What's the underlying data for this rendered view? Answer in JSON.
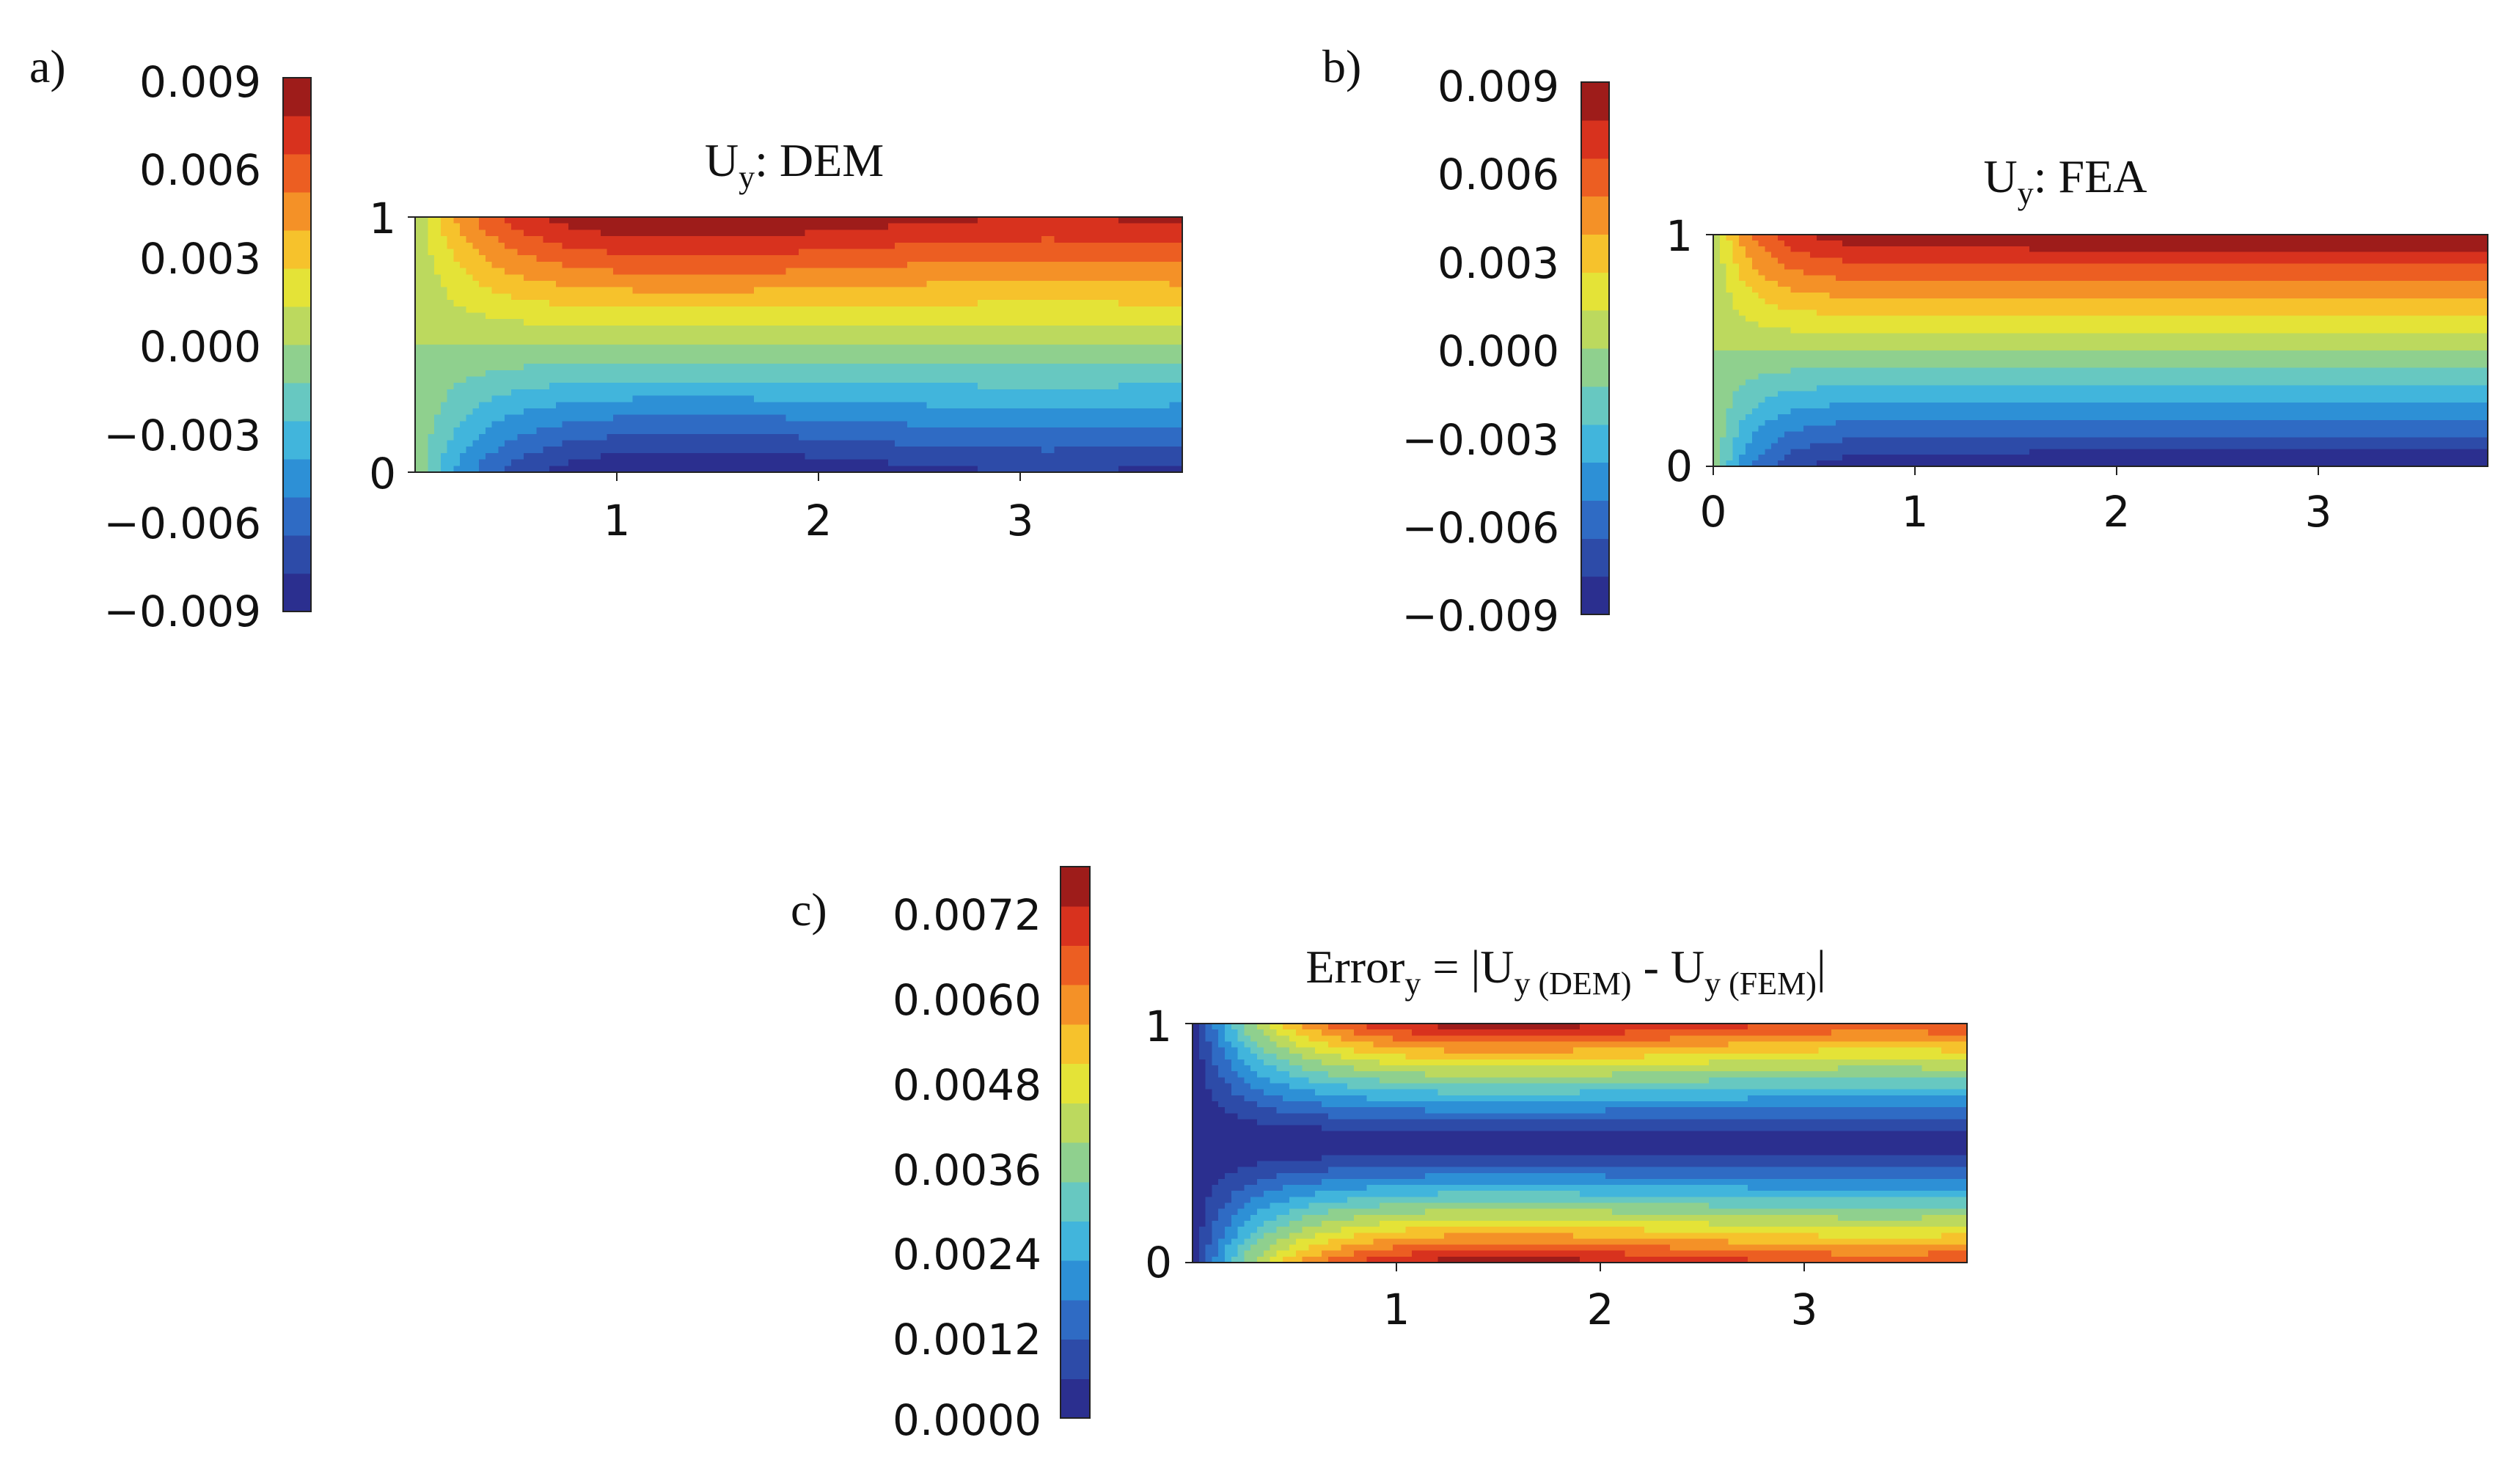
{
  "colormap": [
    "#2b2f8f",
    "#2d4ba8",
    "#2f6bc4",
    "#2d90d6",
    "#41b5dc",
    "#67c8c1",
    "#8fd08e",
    "#bcd95e",
    "#e4e337",
    "#f6c22c",
    "#f49127",
    "#ec5e22",
    "#d8321e",
    "#9e1c1a"
  ],
  "chart_data": [
    {
      "id": "a",
      "panel_label": "a)",
      "type": "heatmap",
      "title_main": "U",
      "title_sub": "y",
      "title_rest": ": DEM",
      "field": "dem",
      "xlim": [
        0,
        3.8
      ],
      "ylim": [
        0,
        1
      ],
      "xticks": [
        {
          "value": 1,
          "label": "1"
        },
        {
          "value": 2,
          "label": "2"
        },
        {
          "value": 3,
          "label": "3"
        }
      ],
      "yticks": [
        {
          "value": 0,
          "label": "0"
        },
        {
          "value": 1,
          "label": "1"
        }
      ],
      "colorbar": {
        "range": [
          -0.009,
          0.009
        ],
        "ticks": [
          {
            "value": 0.009,
            "label": "0.009"
          },
          {
            "value": 0.006,
            "label": "0.006"
          },
          {
            "value": 0.003,
            "label": "0.003"
          },
          {
            "value": 0.0,
            "label": "0.000"
          },
          {
            "value": -0.003,
            "label": "−0.003"
          },
          {
            "value": -0.006,
            "label": "−0.006"
          },
          {
            "value": -0.009,
            "label": "−0.009"
          }
        ]
      }
    },
    {
      "id": "b",
      "panel_label": "b)",
      "type": "heatmap",
      "title_main": "U",
      "title_sub": "y",
      "title_rest": ": FEA",
      "field": "fea",
      "xlim": [
        0,
        3.8
      ],
      "ylim": [
        0,
        1
      ],
      "xticks": [
        {
          "value": 0,
          "label": "0"
        },
        {
          "value": 1,
          "label": "1"
        },
        {
          "value": 2,
          "label": "2"
        },
        {
          "value": 3,
          "label": "3"
        }
      ],
      "yticks": [
        {
          "value": 0,
          "label": "0"
        },
        {
          "value": 1,
          "label": "1"
        }
      ],
      "colorbar": {
        "range": [
          -0.009,
          0.009
        ],
        "ticks": [
          {
            "value": 0.009,
            "label": "0.009"
          },
          {
            "value": 0.006,
            "label": "0.006"
          },
          {
            "value": 0.003,
            "label": "0.003"
          },
          {
            "value": 0.0,
            "label": "0.000"
          },
          {
            "value": -0.003,
            "label": "−0.003"
          },
          {
            "value": -0.006,
            "label": "−0.006"
          },
          {
            "value": -0.009,
            "label": "−0.009"
          }
        ]
      }
    },
    {
      "id": "c",
      "panel_label": "c)",
      "type": "heatmap",
      "title_main": "Error",
      "title_sub": "y",
      "title_rest": " = |U",
      "title_sub2": "y (DEM)",
      "title_rest2": " - U",
      "title_sub3": "y (FEM)",
      "title_rest3": "|",
      "field": "err",
      "xlim": [
        0,
        3.8
      ],
      "ylim": [
        0,
        1
      ],
      "xticks": [
        {
          "value": 1,
          "label": "1"
        },
        {
          "value": 2,
          "label": "2"
        },
        {
          "value": 3,
          "label": "3"
        }
      ],
      "yticks": [
        {
          "value": 0,
          "label": "0"
        },
        {
          "value": 1,
          "label": "1"
        }
      ],
      "colorbar": {
        "range": [
          0.0,
          0.0078
        ],
        "ticks": [
          {
            "value": 0.0072,
            "label": "0.0072"
          },
          {
            "value": 0.006,
            "label": "0.0060"
          },
          {
            "value": 0.0048,
            "label": "0.0048"
          },
          {
            "value": 0.0036,
            "label": "0.0036"
          },
          {
            "value": 0.0024,
            "label": "0.0024"
          },
          {
            "value": 0.0012,
            "label": "0.0012"
          },
          {
            "value": 0.0,
            "label": "0.0000"
          }
        ]
      }
    }
  ]
}
